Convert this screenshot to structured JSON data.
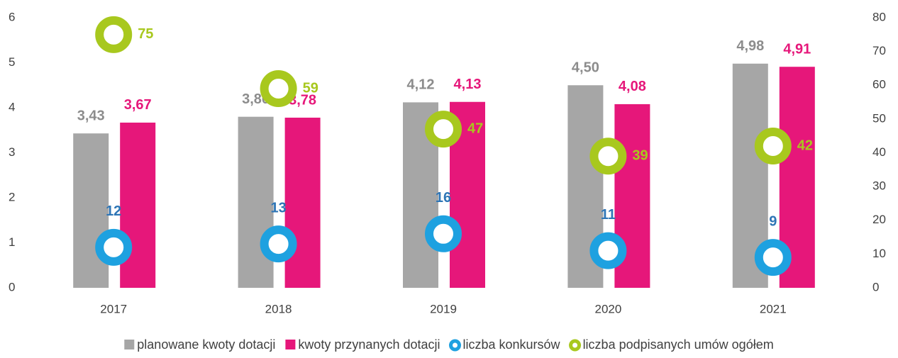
{
  "chart_data": {
    "type": "bar",
    "categories": [
      "2017",
      "2018",
      "2019",
      "2020",
      "2021"
    ],
    "ylim": [
      0,
      6
    ],
    "yticks": [
      0,
      1,
      2,
      3,
      4,
      5,
      6
    ],
    "y2lim": [
      0,
      80
    ],
    "y2ticks": [
      0,
      10,
      20,
      30,
      40,
      50,
      60,
      70,
      80
    ],
    "legend": "bottom",
    "series": [
      {
        "name": "planowane kwoty dotacji",
        "color": "#a6a6a6",
        "label_color": "#8c8c8c",
        "values": [
          3.43,
          3.8,
          4.12,
          4.5,
          4.98
        ],
        "value_labels": [
          "3,43",
          "3,80",
          "4,12",
          "4,50",
          "4,98"
        ]
      },
      {
        "name": "kwoty przynanych dotacji",
        "color": "#e6177a",
        "values": [
          3.67,
          3.78,
          4.13,
          4.08,
          4.91
        ],
        "value_labels": [
          "3,67",
          "3,78",
          "4,13",
          "4,08",
          "4,91"
        ]
      },
      {
        "name": "liczba konkursów",
        "type": "scatter",
        "axis": "y2",
        "color": "#1ea1e0",
        "label_color": "#2e75b6",
        "values": [
          12,
          13,
          16,
          11,
          9
        ]
      },
      {
        "name": "liczba podpisanych umów ogółem",
        "type": "scatter",
        "axis": "y2",
        "color": "#a8c81e",
        "values": [
          75,
          59,
          47,
          39,
          42
        ]
      }
    ]
  }
}
